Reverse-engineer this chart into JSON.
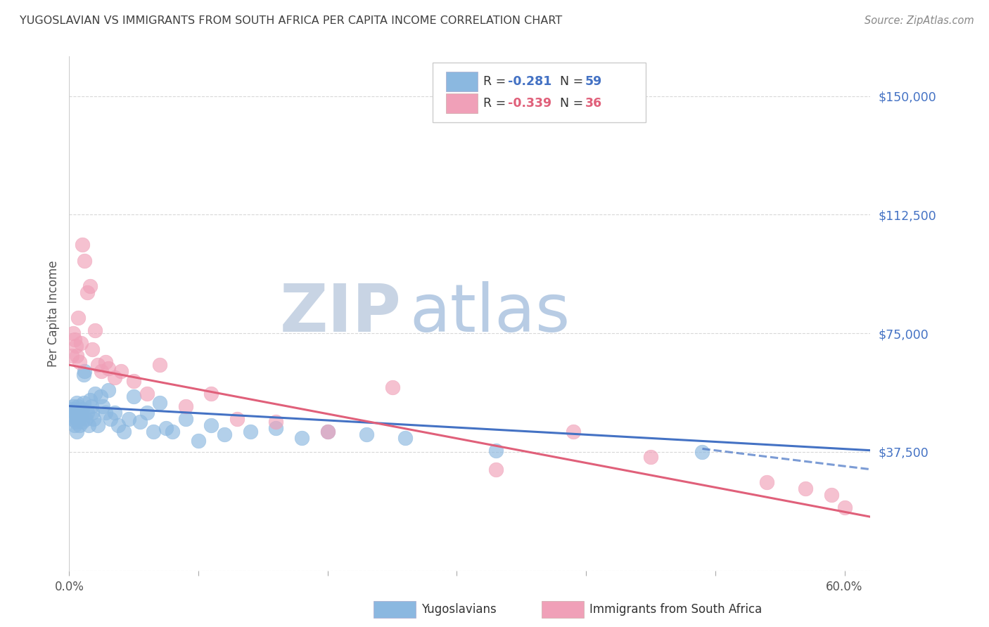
{
  "title": "YUGOSLAVIAN VS IMMIGRANTS FROM SOUTH AFRICA PER CAPITA INCOME CORRELATION CHART",
  "source": "Source: ZipAtlas.com",
  "ylabel": "Per Capita Income",
  "xlim": [
    0.0,
    0.62
  ],
  "ylim": [
    0,
    162500
  ],
  "yticks": [
    0,
    37500,
    75000,
    112500,
    150000
  ],
  "ytick_labels": [
    "",
    "$37,500",
    "$75,000",
    "$112,500",
    "$150,000"
  ],
  "xticks": [
    0.0,
    0.1,
    0.2,
    0.3,
    0.4,
    0.5,
    0.6
  ],
  "xtick_labels": [
    "0.0%",
    "",
    "",
    "",
    "",
    "",
    "60.0%"
  ],
  "legend_bottom_label1": "Yugoslavians",
  "legend_bottom_label2": "Immigrants from South Africa",
  "watermark_zip": "ZIP",
  "watermark_atlas": "atlas",
  "scatter_blue": {
    "x": [
      0.002,
      0.003,
      0.003,
      0.004,
      0.004,
      0.005,
      0.005,
      0.005,
      0.006,
      0.006,
      0.006,
      0.007,
      0.007,
      0.008,
      0.008,
      0.009,
      0.009,
      0.01,
      0.01,
      0.011,
      0.011,
      0.012,
      0.013,
      0.014,
      0.015,
      0.016,
      0.017,
      0.018,
      0.019,
      0.02,
      0.022,
      0.024,
      0.026,
      0.028,
      0.03,
      0.032,
      0.035,
      0.038,
      0.042,
      0.046,
      0.05,
      0.055,
      0.06,
      0.065,
      0.07,
      0.075,
      0.08,
      0.09,
      0.1,
      0.11,
      0.12,
      0.14,
      0.16,
      0.18,
      0.2,
      0.23,
      0.26,
      0.33,
      0.49
    ],
    "y": [
      51000,
      48000,
      52000,
      50000,
      46000,
      49000,
      51000,
      47000,
      53000,
      48000,
      44000,
      52000,
      50000,
      48000,
      46000,
      50000,
      49000,
      51000,
      47000,
      53000,
      62000,
      63000,
      48000,
      50000,
      46000,
      54000,
      52000,
      50000,
      48000,
      56000,
      46000,
      55000,
      52000,
      50000,
      57000,
      48000,
      50000,
      46000,
      44000,
      48000,
      55000,
      47000,
      50000,
      44000,
      53000,
      45000,
      44000,
      48000,
      41000,
      46000,
      43000,
      44000,
      45000,
      42000,
      44000,
      43000,
      42000,
      38000,
      37500
    ]
  },
  "scatter_pink": {
    "x": [
      0.002,
      0.003,
      0.004,
      0.005,
      0.006,
      0.007,
      0.008,
      0.009,
      0.01,
      0.012,
      0.014,
      0.016,
      0.018,
      0.02,
      0.022,
      0.025,
      0.028,
      0.03,
      0.035,
      0.04,
      0.05,
      0.06,
      0.07,
      0.09,
      0.11,
      0.13,
      0.16,
      0.2,
      0.25,
      0.33,
      0.39,
      0.45,
      0.54,
      0.57,
      0.59,
      0.6
    ],
    "y": [
      68000,
      75000,
      73000,
      71000,
      68000,
      80000,
      66000,
      72000,
      103000,
      98000,
      88000,
      90000,
      70000,
      76000,
      65000,
      63000,
      66000,
      64000,
      61000,
      63000,
      60000,
      56000,
      65000,
      52000,
      56000,
      48000,
      47000,
      44000,
      58000,
      32000,
      44000,
      36000,
      28000,
      26000,
      24000,
      20000
    ]
  },
  "blue_line": {
    "x0": 0.0,
    "x1": 0.62,
    "y0": 52000,
    "y1": 38000
  },
  "pink_line": {
    "x0": 0.0,
    "x1": 0.62,
    "y0": 65000,
    "y1": 17000
  },
  "blue_dash_line": {
    "x0": 0.49,
    "x1": 0.62,
    "y0": 38500,
    "y1": 32000
  },
  "color_blue": "#8bb8e0",
  "color_pink": "#f0a0b8",
  "color_blue_line": "#4472c4",
  "color_pink_line": "#e0607a",
  "color_title": "#404040",
  "color_ytick": "#4472c4",
  "color_source": "#888888",
  "background_color": "#ffffff",
  "watermark_zip_color": "#c8d4e4",
  "watermark_atlas_color": "#b8cce4",
  "grid_color": "#d8d8d8",
  "legend_r1": "R = ",
  "legend_v1": "-0.281",
  "legend_n1_label": "  N = ",
  "legend_n1_val": "59",
  "legend_r2": "R = ",
  "legend_v2": "-0.339",
  "legend_n2_label": "  N = ",
  "legend_n2_val": "36"
}
